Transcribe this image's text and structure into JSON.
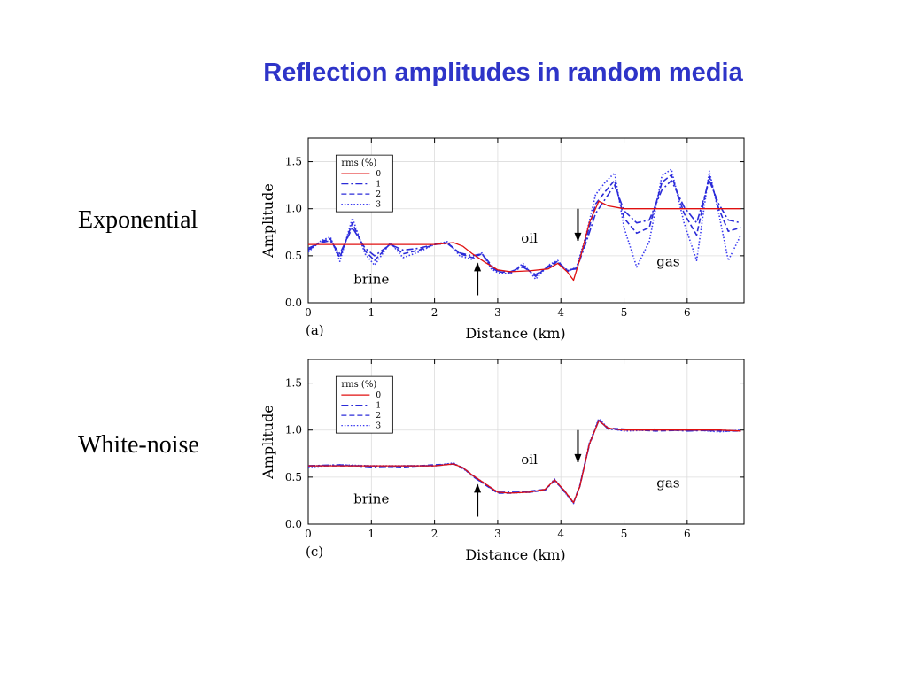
{
  "slide": {
    "title": "Reflection amplitudes in random media",
    "title_color": "#2e34c8",
    "labels": [
      "Exponential",
      "White-noise"
    ]
  },
  "chart_data": [
    {
      "type": "line",
      "panel_label": "(a)",
      "xlabel": "Distance (km)",
      "ylabel": "Amplitude",
      "xlim": [
        0,
        6.9
      ],
      "ylim": [
        0,
        1.75
      ],
      "xticks": [
        0,
        1,
        2,
        3,
        4,
        5,
        6
      ],
      "yticks": [
        0.0,
        0.5,
        1.0,
        1.5
      ],
      "ytick_labels": [
        "0.0",
        "0.5",
        "1.0",
        "1.5"
      ],
      "legend": {
        "title": "rms  (%)",
        "position": "top-left",
        "entries": [
          "0",
          "1",
          "2",
          "3"
        ]
      },
      "annotations": [
        {
          "text": "brine",
          "x": 1.0,
          "y": 0.2
        },
        {
          "text": "oil",
          "x": 3.5,
          "y": 0.64
        },
        {
          "text": "gas",
          "x": 5.7,
          "y": 0.39
        }
      ],
      "arrows": [
        {
          "direction": "up",
          "x": 2.68,
          "y_from": 0.08,
          "y_to": 0.42
        },
        {
          "direction": "down",
          "x": 4.27,
          "y_from": 1.0,
          "y_to": 0.66
        }
      ],
      "series": [
        {
          "name": "0",
          "color": "#e01010",
          "dash": "",
          "x": [
            0,
            0.5,
            1,
            1.5,
            2,
            2.3,
            2.45,
            2.6,
            2.8,
            3.0,
            3.2,
            3.5,
            3.8,
            3.95,
            4.1,
            4.2,
            4.3,
            4.45,
            4.6,
            4.75,
            5.0,
            5.5,
            6.0,
            6.5,
            6.85
          ],
          "values": [
            0.62,
            0.62,
            0.62,
            0.62,
            0.62,
            0.64,
            0.6,
            0.52,
            0.43,
            0.35,
            0.33,
            0.34,
            0.36,
            0.42,
            0.33,
            0.24,
            0.46,
            0.85,
            1.08,
            1.03,
            1.0,
            1.0,
            1.0,
            1.0,
            1.0
          ]
        },
        {
          "name": "1",
          "color": "#2b2bd8",
          "dash": "8,3,2,3",
          "x": [
            0,
            0.2,
            0.35,
            0.5,
            0.7,
            0.9,
            1.05,
            1.3,
            1.5,
            1.75,
            2.0,
            2.2,
            2.4,
            2.6,
            2.75,
            2.9,
            3.0,
            3.2,
            3.4,
            3.6,
            3.8,
            3.95,
            4.1,
            4.25,
            4.4,
            4.55,
            4.7,
            4.85,
            5.0,
            5.2,
            5.4,
            5.6,
            5.75,
            5.95,
            6.15,
            6.35,
            6.5,
            6.65,
            6.85
          ],
          "values": [
            0.58,
            0.64,
            0.66,
            0.52,
            0.8,
            0.58,
            0.5,
            0.62,
            0.56,
            0.58,
            0.62,
            0.63,
            0.53,
            0.5,
            0.52,
            0.4,
            0.34,
            0.33,
            0.38,
            0.3,
            0.38,
            0.43,
            0.35,
            0.36,
            0.64,
            0.95,
            1.1,
            1.25,
            0.98,
            0.85,
            0.88,
            1.2,
            1.3,
            1.02,
            0.85,
            1.3,
            1.05,
            0.88,
            0.85
          ]
        },
        {
          "name": "2",
          "color": "#2b2bd8",
          "dash": "6,3",
          "x": [
            0,
            0.2,
            0.35,
            0.5,
            0.7,
            0.9,
            1.05,
            1.3,
            1.5,
            1.75,
            2.0,
            2.2,
            2.4,
            2.6,
            2.75,
            2.9,
            3.0,
            3.2,
            3.4,
            3.6,
            3.8,
            3.95,
            4.1,
            4.25,
            4.4,
            4.55,
            4.7,
            4.85,
            5.0,
            5.2,
            5.4,
            5.6,
            5.75,
            5.95,
            6.15,
            6.35,
            6.5,
            6.65,
            6.85
          ],
          "values": [
            0.56,
            0.65,
            0.68,
            0.48,
            0.85,
            0.55,
            0.45,
            0.63,
            0.52,
            0.56,
            0.62,
            0.64,
            0.52,
            0.48,
            0.52,
            0.38,
            0.33,
            0.32,
            0.4,
            0.28,
            0.39,
            0.44,
            0.34,
            0.37,
            0.68,
            1.05,
            1.18,
            1.3,
            0.9,
            0.74,
            0.8,
            1.28,
            1.36,
            0.95,
            0.72,
            1.35,
            1.0,
            0.76,
            0.8
          ]
        },
        {
          "name": "3",
          "color": "#3a3af0",
          "dash": "1.5,2",
          "x": [
            0,
            0.2,
            0.35,
            0.5,
            0.7,
            0.9,
            1.05,
            1.3,
            1.5,
            1.75,
            2.0,
            2.2,
            2.4,
            2.6,
            2.75,
            2.9,
            3.0,
            3.2,
            3.4,
            3.6,
            3.8,
            3.95,
            4.1,
            4.25,
            4.4,
            4.55,
            4.7,
            4.85,
            5.0,
            5.2,
            5.4,
            5.6,
            5.75,
            5.95,
            6.15,
            6.35,
            6.5,
            6.65,
            6.85
          ],
          "values": [
            0.54,
            0.66,
            0.7,
            0.44,
            0.9,
            0.52,
            0.4,
            0.64,
            0.48,
            0.54,
            0.62,
            0.65,
            0.5,
            0.46,
            0.53,
            0.36,
            0.32,
            0.31,
            0.42,
            0.25,
            0.4,
            0.45,
            0.33,
            0.38,
            0.72,
            1.15,
            1.28,
            1.38,
            0.8,
            0.38,
            0.65,
            1.35,
            1.42,
            0.85,
            0.45,
            1.4,
            0.95,
            0.45,
            0.72
          ]
        }
      ]
    },
    {
      "type": "line",
      "panel_label": "(c)",
      "xlabel": "Distance (km)",
      "ylabel": "Amplitude",
      "xlim": [
        0,
        6.9
      ],
      "ylim": [
        0,
        1.75
      ],
      "xticks": [
        0,
        1,
        2,
        3,
        4,
        5,
        6
      ],
      "yticks": [
        0.0,
        0.5,
        1.0,
        1.5
      ],
      "ytick_labels": [
        "0.0",
        "0.5",
        "1.0",
        "1.5"
      ],
      "legend": {
        "title": "rms  (%)",
        "position": "top-left",
        "entries": [
          "0",
          "1",
          "2",
          "3"
        ]
      },
      "annotations": [
        {
          "text": "brine",
          "x": 1.0,
          "y": 0.22
        },
        {
          "text": "oil",
          "x": 3.5,
          "y": 0.64
        },
        {
          "text": "gas",
          "x": 5.7,
          "y": 0.39
        }
      ],
      "arrows": [
        {
          "direction": "up",
          "x": 2.68,
          "y_from": 0.08,
          "y_to": 0.42
        },
        {
          "direction": "down",
          "x": 4.27,
          "y_from": 1.0,
          "y_to": 0.66
        }
      ],
      "series": [
        {
          "name": "0",
          "color": "#e01010",
          "dash": "",
          "x": [
            0,
            0.5,
            1,
            1.5,
            2,
            2.3,
            2.45,
            2.6,
            2.8,
            3.0,
            3.2,
            3.5,
            3.75,
            3.9,
            4.05,
            4.2,
            4.3,
            4.45,
            4.6,
            4.75,
            5.0,
            5.5,
            6.0,
            6.5,
            6.85
          ],
          "values": [
            0.62,
            0.62,
            0.62,
            0.62,
            0.62,
            0.64,
            0.6,
            0.52,
            0.43,
            0.34,
            0.33,
            0.34,
            0.37,
            0.47,
            0.36,
            0.23,
            0.4,
            0.85,
            1.1,
            1.02,
            1.0,
            1.0,
            1.0,
            1.0,
            0.99
          ]
        },
        {
          "name": "1",
          "color": "#2b2bd8",
          "dash": "8,3,2,3",
          "x": [
            0,
            0.5,
            1,
            1.5,
            2,
            2.3,
            2.45,
            2.6,
            2.8,
            3.0,
            3.2,
            3.5,
            3.75,
            3.9,
            4.05,
            4.2,
            4.3,
            4.45,
            4.6,
            4.75,
            5.0,
            5.5,
            6.0,
            6.5,
            6.85
          ],
          "values": [
            0.62,
            0.63,
            0.61,
            0.62,
            0.62,
            0.64,
            0.6,
            0.51,
            0.42,
            0.34,
            0.34,
            0.34,
            0.36,
            0.47,
            0.35,
            0.23,
            0.41,
            0.84,
            1.11,
            1.01,
            1.0,
            1.01,
            0.99,
            1.0,
            0.99
          ]
        },
        {
          "name": "2",
          "color": "#2b2bd8",
          "dash": "6,3",
          "x": [
            0,
            0.5,
            1,
            1.5,
            2,
            2.3,
            2.45,
            2.6,
            2.8,
            3.0,
            3.2,
            3.5,
            3.75,
            3.9,
            4.05,
            4.2,
            4.3,
            4.45,
            4.6,
            4.75,
            5.0,
            5.5,
            6.0,
            6.5,
            6.85
          ],
          "values": [
            0.62,
            0.62,
            0.62,
            0.61,
            0.63,
            0.64,
            0.6,
            0.52,
            0.42,
            0.33,
            0.33,
            0.35,
            0.37,
            0.46,
            0.36,
            0.23,
            0.4,
            0.85,
            1.1,
            1.02,
            1.01,
            0.99,
            1.0,
            0.99,
            0.99
          ]
        },
        {
          "name": "3",
          "color": "#3a3af0",
          "dash": "1.5,2",
          "x": [
            0,
            0.5,
            1,
            1.5,
            2,
            2.3,
            2.45,
            2.6,
            2.8,
            3.0,
            3.2,
            3.5,
            3.75,
            3.9,
            4.05,
            4.2,
            4.3,
            4.45,
            4.6,
            4.75,
            5.0,
            5.5,
            6.0,
            6.5,
            6.85
          ],
          "values": [
            0.61,
            0.63,
            0.62,
            0.62,
            0.62,
            0.65,
            0.59,
            0.52,
            0.43,
            0.34,
            0.33,
            0.34,
            0.36,
            0.48,
            0.35,
            0.22,
            0.41,
            0.86,
            1.12,
            1.02,
            0.99,
            1.0,
            1.01,
            0.98,
            1.0
          ]
        }
      ]
    }
  ]
}
